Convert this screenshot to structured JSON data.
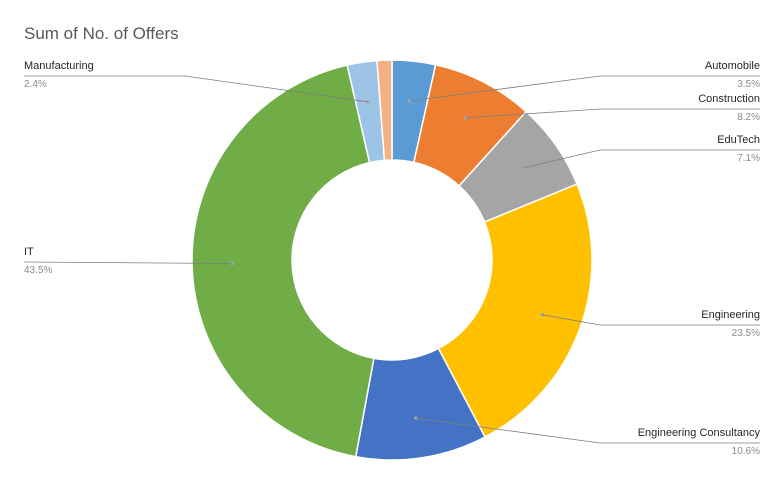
{
  "chart_data": {
    "type": "pie",
    "title": "Sum of No. of Offers",
    "donut": true,
    "legend": "none",
    "slices": [
      {
        "label": "Automobile",
        "value": 3.5,
        "display": "3.5%",
        "color": "#5b9bd5"
      },
      {
        "label": "Construction",
        "value": 8.2,
        "display": "8.2%",
        "color": "#ed7d31"
      },
      {
        "label": "EduTech",
        "value": 7.1,
        "display": "7.1%",
        "color": "#a5a5a5"
      },
      {
        "label": "Engineering",
        "value": 23.5,
        "display": "23.5%",
        "color": "#ffc000"
      },
      {
        "label": "Engineering Consultancy",
        "value": 10.6,
        "display": "10.6%",
        "color": "#4472c4"
      },
      {
        "label": "IT",
        "value": 43.5,
        "display": "43.5%",
        "color": "#70ad47"
      },
      {
        "label": "Manufacturing",
        "value": 2.4,
        "display": "2.4%",
        "color": "#9dc3e6"
      },
      {
        "label": "",
        "value": 1.2,
        "display": "",
        "color": "#f4b183"
      }
    ]
  }
}
